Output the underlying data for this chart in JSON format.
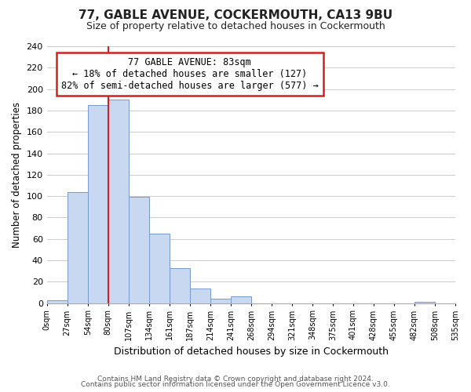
{
  "title": "77, GABLE AVENUE, COCKERMOUTH, CA13 9BU",
  "subtitle": "Size of property relative to detached houses in Cockermouth",
  "xlabel": "Distribution of detached houses by size in Cockermouth",
  "ylabel": "Number of detached properties",
  "bin_labels": [
    "0sqm",
    "27sqm",
    "54sqm",
    "80sqm",
    "107sqm",
    "134sqm",
    "161sqm",
    "187sqm",
    "214sqm",
    "241sqm",
    "268sqm",
    "294sqm",
    "321sqm",
    "348sqm",
    "375sqm",
    "401sqm",
    "428sqm",
    "455sqm",
    "482sqm",
    "508sqm",
    "535sqm"
  ],
  "bar_values": [
    3,
    104,
    185,
    190,
    99,
    65,
    33,
    14,
    4,
    6,
    0,
    0,
    0,
    0,
    0,
    0,
    0,
    0,
    1,
    0
  ],
  "bar_color": "#c8d8f0",
  "bar_edge_color": "#7799cc",
  "annotation_title": "77 GABLE AVENUE: 83sqm",
  "annotation_line1": "← 18% of detached houses are smaller (127)",
  "annotation_line2": "82% of semi-detached houses are larger (577) →",
  "annotation_box_color": "#ffffff",
  "annotation_box_edge_color": "#cc2222",
  "property_line_color": "#cc2222",
  "ylim": [
    0,
    240
  ],
  "yticks": [
    0,
    20,
    40,
    60,
    80,
    100,
    120,
    140,
    160,
    180,
    200,
    220,
    240
  ],
  "footer_line1": "Contains HM Land Registry data © Crown copyright and database right 2024.",
  "footer_line2": "Contains public sector information licensed under the Open Government Licence v3.0.",
  "background_color": "#ffffff",
  "grid_color": "#cccccc"
}
